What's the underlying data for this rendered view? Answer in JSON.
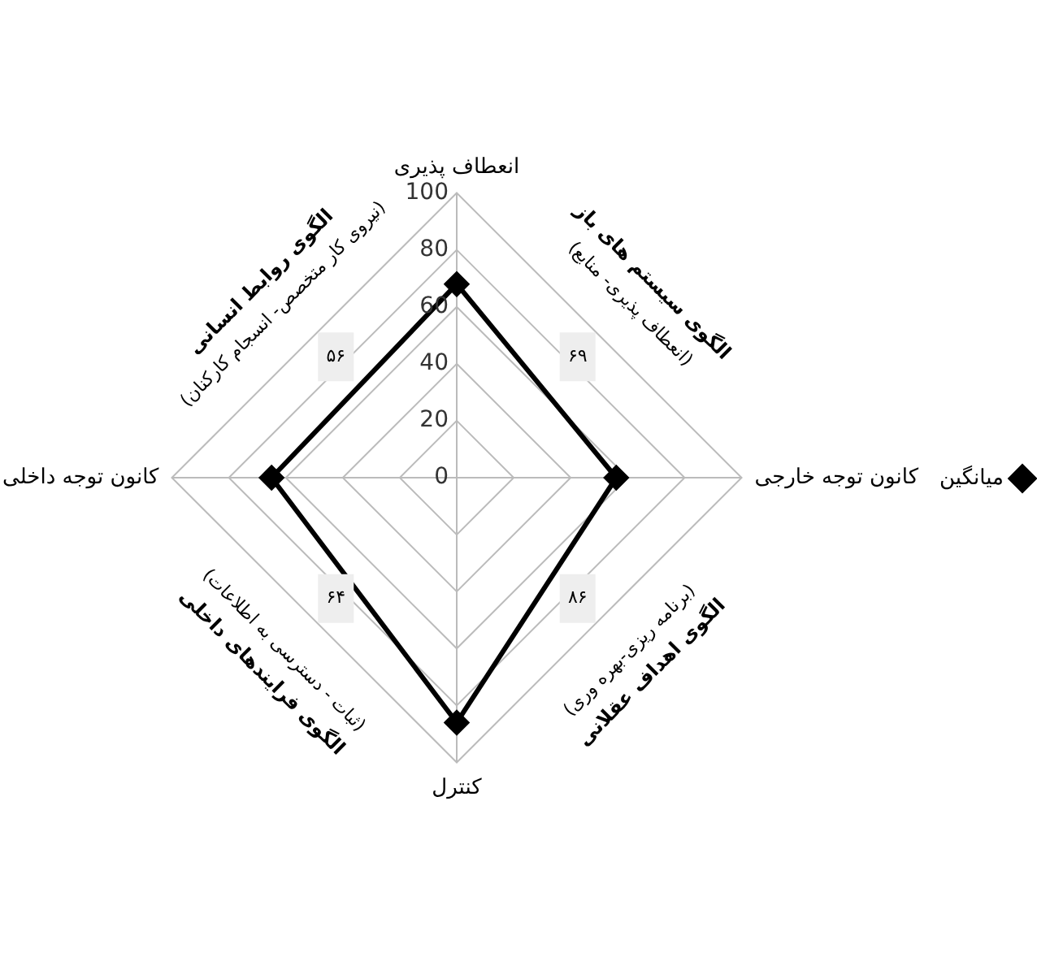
{
  "chart_data": {
    "type": "radar",
    "categories": [
      "انعطاف پذیری",
      "کانون توجه خارجی",
      "کنترل",
      "کانون توجه داخلی"
    ],
    "series": [
      {
        "name": "میانگین",
        "color": "#000000",
        "values": [
          68,
          56,
          86,
          65
        ]
      }
    ],
    "ylim": [
      0,
      100
    ],
    "yticks": [
      0,
      20,
      40,
      60,
      80,
      100
    ],
    "grid": true,
    "legend": "right",
    "marker": "diamond",
    "line_style": "solid",
    "annotations": [
      "الگوی سیستم های باز",
      "(انعطاف پذیری- منابع)",
      "۶۹",
      "الگوی اهداف عقلانی",
      "(برنامه ریزی-بهره وری)",
      "۸۶",
      "الگوی فرایندهای داخلی",
      "(ثبات - دسترسی به اطلاعات)",
      "۶۴",
      "الگوی روابط انسانی",
      "(نیروی کار متخصص- انسجام کارکنان)",
      "۵۶"
    ]
  }
}
